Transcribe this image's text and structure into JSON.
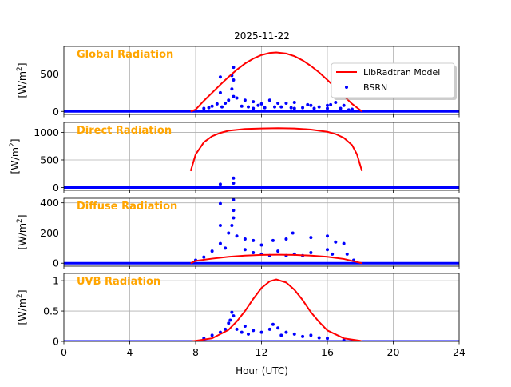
{
  "chart_data": {
    "type": "scatter",
    "title": "2025-11-22",
    "xlabel": "Hour (UTC)",
    "xlim": [
      0,
      24
    ],
    "xticks": [
      0,
      4,
      8,
      12,
      16,
      20,
      24
    ],
    "grid": true,
    "legend": {
      "placement": "top-right of first panel",
      "entries": [
        "LibRadtran Model",
        "BSRN"
      ]
    },
    "colors": {
      "model": "#ff0000",
      "bsrn": "#0000ff",
      "label": "#ffa500"
    },
    "panels": [
      {
        "name": "Global Radiation",
        "ylabel": "[W/m2]",
        "ylim": [
          -40,
          870
        ],
        "yticks": [
          0,
          500
        ],
        "model": [
          [
            7.7,
            0
          ],
          [
            8,
            25
          ],
          [
            8.5,
            142
          ],
          [
            9,
            250
          ],
          [
            9.5,
            358
          ],
          [
            10,
            462
          ],
          [
            10.5,
            558
          ],
          [
            11,
            641
          ],
          [
            11.5,
            707
          ],
          [
            12,
            755
          ],
          [
            12.5,
            783
          ],
          [
            12.9,
            790
          ],
          [
            13.5,
            775
          ],
          [
            14,
            739
          ],
          [
            14.5,
            683
          ],
          [
            15,
            609
          ],
          [
            15.5,
            522
          ],
          [
            16,
            422
          ],
          [
            16.5,
            315
          ],
          [
            17,
            207
          ],
          [
            17.5,
            101
          ],
          [
            18.1,
            0
          ]
        ],
        "bsrn_night": 0,
        "bsrn": [
          [
            9.5,
            460
          ],
          [
            9.5,
            250
          ],
          [
            10.2,
            480
          ],
          [
            10.3,
            590
          ],
          [
            10.3,
            420
          ],
          [
            10.2,
            300
          ],
          [
            10.3,
            200
          ],
          [
            9.3,
            100
          ],
          [
            10,
            150
          ],
          [
            10.5,
            180
          ],
          [
            11,
            150
          ],
          [
            11.5,
            130
          ],
          [
            12,
            100
          ],
          [
            12.5,
            150
          ],
          [
            13,
            110
          ],
          [
            13.5,
            110
          ],
          [
            14,
            120
          ],
          [
            15,
            80
          ],
          [
            16,
            80
          ],
          [
            16.5,
            120
          ],
          [
            17,
            80
          ],
          [
            8.5,
            40
          ],
          [
            9,
            70
          ],
          [
            11.2,
            60
          ],
          [
            12.2,
            50
          ],
          [
            13.2,
            60
          ],
          [
            14.5,
            50
          ],
          [
            15.5,
            60
          ],
          [
            16.8,
            40
          ],
          [
            17.3,
            20
          ],
          [
            8,
            10
          ],
          [
            9.8,
            110
          ],
          [
            11.8,
            80
          ],
          [
            14.8,
            90
          ],
          [
            16.2,
            90
          ],
          [
            17.5,
            30
          ],
          [
            8.8,
            50
          ],
          [
            9.6,
            60
          ],
          [
            10.8,
            70
          ],
          [
            12.8,
            60
          ],
          [
            13.8,
            50
          ],
          [
            15.2,
            40
          ],
          [
            16,
            40
          ],
          [
            11.5,
            40
          ],
          [
            14,
            40
          ]
        ]
      },
      {
        "name": "Direct Radiation",
        "ylabel": "[W/m2]",
        "ylim": [
          -50,
          1180
        ],
        "yticks": [
          0,
          500,
          1000
        ],
        "model": [
          [
            7.7,
            300
          ],
          [
            8,
            600
          ],
          [
            8.5,
            820
          ],
          [
            9,
            930
          ],
          [
            9.5,
            990
          ],
          [
            10,
            1030
          ],
          [
            11,
            1060
          ],
          [
            12,
            1070
          ],
          [
            13,
            1075
          ],
          [
            14,
            1070
          ],
          [
            15,
            1050
          ],
          [
            16,
            1010
          ],
          [
            16.5,
            970
          ],
          [
            17,
            900
          ],
          [
            17.5,
            770
          ],
          [
            17.8,
            600
          ],
          [
            18.1,
            300
          ]
        ],
        "bsrn_night": 0,
        "bsrn": [
          [
            9.5,
            60
          ],
          [
            10.3,
            170
          ],
          [
            10.3,
            80
          ]
        ]
      },
      {
        "name": "Diffuse Radiation",
        "ylabel": "[W/m2]",
        "ylim": [
          -20,
          430
        ],
        "yticks": [
          0,
          200,
          400
        ],
        "model": [
          [
            7.7,
            0
          ],
          [
            8,
            15
          ],
          [
            9,
            30
          ],
          [
            10,
            42
          ],
          [
            11,
            50
          ],
          [
            12,
            55
          ],
          [
            13,
            56
          ],
          [
            14,
            55
          ],
          [
            15,
            50
          ],
          [
            16,
            42
          ],
          [
            17,
            28
          ],
          [
            18.1,
            0
          ]
        ],
        "bsrn_night": 0,
        "bsrn": [
          [
            9.5,
            395
          ],
          [
            10.3,
            420
          ],
          [
            10.3,
            350
          ],
          [
            10.3,
            300
          ],
          [
            9.5,
            250
          ],
          [
            10,
            200
          ],
          [
            10.5,
            180
          ],
          [
            11,
            160
          ],
          [
            11.5,
            150
          ],
          [
            12,
            120
          ],
          [
            12.7,
            150
          ],
          [
            13.5,
            160
          ],
          [
            13.9,
            200
          ],
          [
            15,
            170
          ],
          [
            16,
            180
          ],
          [
            16.5,
            140
          ],
          [
            17,
            130
          ],
          [
            9,
            80
          ],
          [
            9.5,
            130
          ],
          [
            10.2,
            250
          ],
          [
            11,
            90
          ],
          [
            12,
            60
          ],
          [
            13,
            80
          ],
          [
            14,
            60
          ],
          [
            15,
            70
          ],
          [
            16,
            90
          ],
          [
            17.2,
            60
          ],
          [
            8.5,
            40
          ],
          [
            8,
            20
          ],
          [
            17.6,
            20
          ],
          [
            11.5,
            70
          ],
          [
            14.5,
            50
          ],
          [
            9.8,
            100
          ],
          [
            12.5,
            50
          ],
          [
            13.5,
            50
          ],
          [
            16.3,
            60
          ]
        ]
      },
      {
        "name": "UVB Radiation",
        "ylabel": "[W/m2]",
        "ylim": [
          0,
          1.12
        ],
        "yticks": [
          0.0,
          0.5,
          1.0
        ],
        "model": [
          [
            7.7,
            0
          ],
          [
            8,
            0.01
          ],
          [
            9,
            0.05
          ],
          [
            10,
            0.19
          ],
          [
            10.5,
            0.33
          ],
          [
            11,
            0.5
          ],
          [
            11.5,
            0.7
          ],
          [
            12,
            0.88
          ],
          [
            12.5,
            0.99
          ],
          [
            12.9,
            1.02
          ],
          [
            13.5,
            0.97
          ],
          [
            14,
            0.85
          ],
          [
            14.5,
            0.68
          ],
          [
            15,
            0.48
          ],
          [
            15.5,
            0.32
          ],
          [
            16,
            0.18
          ],
          [
            17,
            0.05
          ],
          [
            18,
            0.01
          ],
          [
            18.1,
            0
          ]
        ],
        "bsrn_night": 0,
        "bsrn": [
          [
            10.2,
            0.48
          ],
          [
            10.3,
            0.42
          ],
          [
            10.1,
            0.35
          ],
          [
            10,
            0.3
          ],
          [
            9.5,
            0.15
          ],
          [
            9,
            0.1
          ],
          [
            10.5,
            0.2
          ],
          [
            11,
            0.25
          ],
          [
            11.5,
            0.18
          ],
          [
            12,
            0.15
          ],
          [
            12.5,
            0.2
          ],
          [
            13,
            0.22
          ],
          [
            13.5,
            0.15
          ],
          [
            14,
            0.12
          ],
          [
            15,
            0.1
          ],
          [
            15.5,
            0.06
          ],
          [
            16,
            0.05
          ],
          [
            17,
            0.02
          ],
          [
            8.5,
            0.05
          ],
          [
            11.2,
            0.12
          ],
          [
            12.7,
            0.28
          ],
          [
            13.2,
            0.1
          ],
          [
            14.5,
            0.08
          ],
          [
            9.8,
            0.2
          ],
          [
            10.8,
            0.15
          ]
        ]
      }
    ]
  }
}
